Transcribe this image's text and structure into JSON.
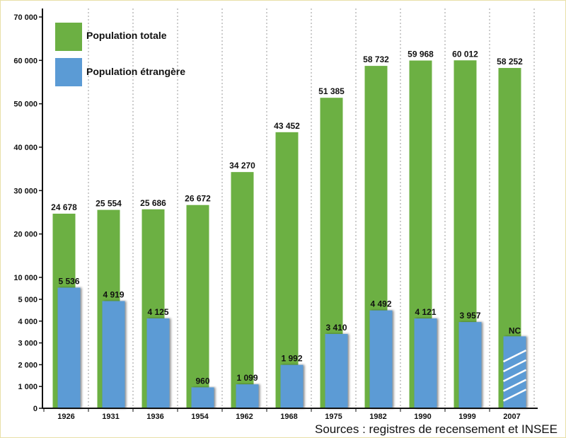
{
  "chart_data": {
    "type": "bar",
    "categories": [
      "1926",
      "1931",
      "1936",
      "1954",
      "1962",
      "1968",
      "1975",
      "1982",
      "1990",
      "1999",
      "2007"
    ],
    "series": [
      {
        "name": "Population totale",
        "color": "#6cb043",
        "values": [
          24678,
          25554,
          25686,
          26672,
          34270,
          43452,
          51385,
          58732,
          59968,
          60012,
          58252
        ],
        "value_labels": [
          "24 678",
          "25 554",
          "25 686",
          "26 672",
          "34 270",
          "43 452",
          "51 385",
          "58 732",
          "59 968",
          "60 012",
          "58 252"
        ]
      },
      {
        "name": "Population étrangère",
        "color": "#5b9bd5",
        "values": [
          5536,
          4919,
          4125,
          960,
          1099,
          1992,
          3410,
          4492,
          4121,
          3957,
          null
        ],
        "value_labels": [
          "5 536",
          "4 919",
          "4 125",
          "960",
          "1 099",
          "1 992",
          "3 410",
          "4 492",
          "4 121",
          "3 957",
          "NC"
        ]
      }
    ],
    "axis_scale": "broken: linear 0–5 000 (lower part), linear 10 000–70 000 (upper part)",
    "y_ticks": [
      {
        "value": 0,
        "label": "0"
      },
      {
        "value": 1000,
        "label": "1 000"
      },
      {
        "value": 2000,
        "label": "2 000"
      },
      {
        "value": 3000,
        "label": "3 000"
      },
      {
        "value": 4000,
        "label": "4 000"
      },
      {
        "value": 5000,
        "label": "5 000"
      },
      {
        "value": 10000,
        "label": "10 000"
      },
      {
        "value": 20000,
        "label": "20 000"
      },
      {
        "value": 30000,
        "label": "30 000"
      },
      {
        "value": 40000,
        "label": "40 000"
      },
      {
        "value": 50000,
        "label": "50 000"
      },
      {
        "value": 60000,
        "label": "60 000"
      },
      {
        "value": 70000,
        "label": "70 000"
      }
    ],
    "grid": "vertical dotted lines",
    "legend": "top-left",
    "source": "Sources : registres de recensement et INSEE"
  }
}
